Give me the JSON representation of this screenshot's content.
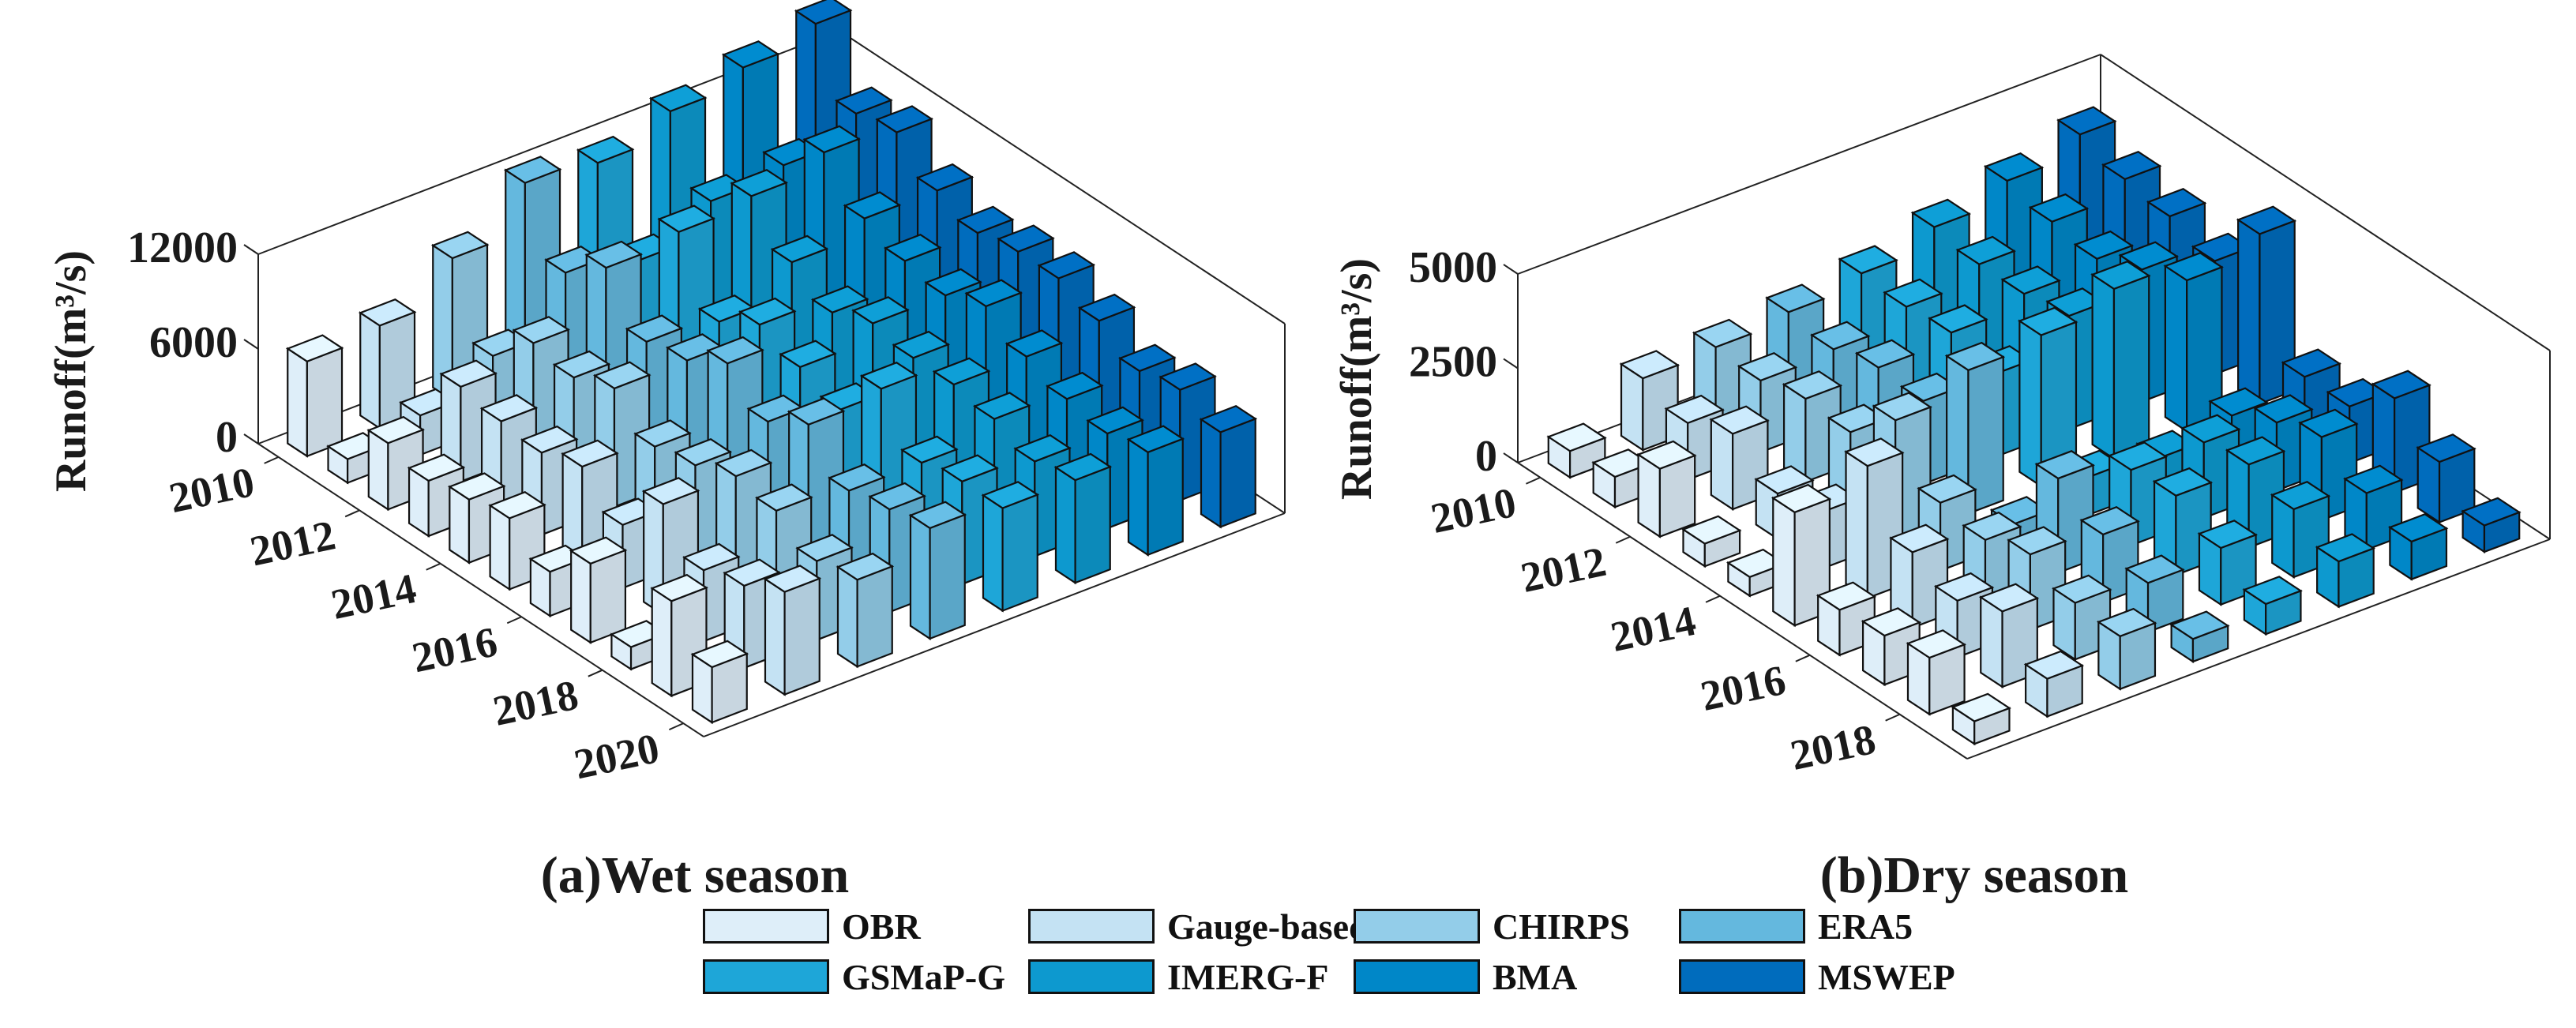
{
  "legend": [
    {
      "label": "OBR",
      "color": "#deeef9"
    },
    {
      "label": "Gauge-based",
      "color": "#c4e2f3"
    },
    {
      "label": "CHIRPS",
      "color": "#93cde9"
    },
    {
      "label": "ERA5",
      "color": "#64b8de"
    },
    {
      "label": "GSMaP-G",
      "color": "#1ea6d8"
    },
    {
      "label": "IMERG-F",
      "color": "#0d99cf"
    },
    {
      "label": "BMA",
      "color": "#0087c8"
    },
    {
      "label": "MSWEP",
      "color": "#006cbd"
    }
  ],
  "chart_data": [
    {
      "type": "bar3d",
      "title": "(a)Wet season",
      "zlabel": "Runoff(m³/s)",
      "zlim": [
        0,
        12000
      ],
      "zticks": [
        "0",
        "6000",
        "12000"
      ],
      "year_ticks": [
        "2010",
        "2012",
        "2014",
        "2016",
        "2018",
        "2020"
      ],
      "years": [
        2010,
        2011,
        2012,
        2013,
        2014,
        2015,
        2016,
        2017,
        2018,
        2019,
        2020
      ],
      "series": [
        {
          "name": "OBR",
          "values": [
            6000,
            1500,
            4200,
            3500,
            4000,
            4500,
            2800,
            5000,
            1400,
            6000,
            3500
          ]
        },
        {
          "name": "Gauge-based",
          "values": [
            6500,
            2500,
            6000,
            5500,
            5200,
            6000,
            4000,
            7000,
            4500,
            5200,
            6500
          ]
        },
        {
          "name": "CHIRPS",
          "values": [
            9000,
            4500,
            7000,
            6500,
            7500,
            5500,
            6000,
            7000,
            6500,
            5000,
            5500
          ]
        },
        {
          "name": "ERA5",
          "values": [
            12000,
            8000,
            10000,
            7000,
            7500,
            9000,
            7000,
            8500,
            6000,
            6500,
            7000
          ]
        },
        {
          "name": "GSMaP-G",
          "values": [
            11500,
            7000,
            10500,
            6500,
            8000,
            7000,
            6000,
            9000,
            6000,
            6500,
            6500
          ]
        },
        {
          "name": "IMERG-F",
          "values": [
            13000,
            9000,
            11000,
            8500,
            7000,
            8000,
            7500,
            7500,
            7000,
            6000,
            6500
          ]
        },
        {
          "name": "BMA",
          "values": [
            14000,
            9500,
            12000,
            9500,
            8500,
            8000,
            9000,
            7500,
            6500,
            6000,
            6500
          ]
        },
        {
          "name": "MSWEP",
          "values": [
            15000,
            11000,
            11500,
            9500,
            8500,
            9000,
            9000,
            8000,
            6500,
            7000,
            6000
          ]
        }
      ]
    },
    {
      "type": "bar3d",
      "title": "(b)Dry season",
      "zlabel": "Runoff(m³/s)",
      "zlim": [
        0,
        5000
      ],
      "zticks": [
        "0",
        "2500",
        "5000"
      ],
      "year_ticks": [
        "2010",
        "2012",
        "2014",
        "2016",
        "2018"
      ],
      "years": [
        2010,
        2011,
        2012,
        2013,
        2014,
        2015,
        2016,
        2017,
        2018,
        2019
      ],
      "series": [
        {
          "name": "OBR",
          "values": [
            700,
            800,
            1800,
            600,
            500,
            3000,
            1200,
            1300,
            1500,
            600
          ]
        },
        {
          "name": "Gauge-based",
          "values": [
            1900,
            1500,
            2000,
            1200,
            1500,
            3500,
            2000,
            1500,
            2000,
            1000
          ]
        },
        {
          "name": "CHIRPS",
          "values": [
            2000,
            1900,
            2200,
            2100,
            3200,
            1800,
            1600,
            2000,
            1500,
            1400
          ]
        },
        {
          "name": "ERA5",
          "values": [
            2200,
            2000,
            2300,
            2200,
            3800,
            500,
            2500,
            1800,
            1300,
            600
          ]
        },
        {
          "name": "GSMaP-G",
          "values": [
            2500,
            2400,
            2500,
            2200,
            4000,
            1000,
            2000,
            2100,
            1500,
            800
          ]
        },
        {
          "name": "IMERG-F",
          "values": [
            3000,
            2800,
            2800,
            3000,
            4500,
            800,
            2000,
            2200,
            1800,
            1200
          ]
        },
        {
          "name": "BMA",
          "values": [
            3500,
            3200,
            3000,
            3500,
            4000,
            1200,
            1800,
            2200,
            1500,
            1000
          ]
        },
        {
          "name": "MSWEP",
          "values": [
            4000,
            3600,
            3400,
            3000,
            4500,
            1500,
            1500,
            2500,
            1600,
            700
          ]
        }
      ]
    }
  ]
}
